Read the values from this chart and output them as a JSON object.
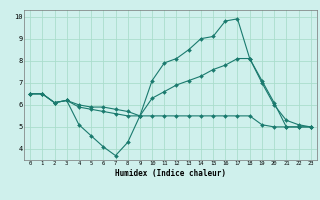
{
  "xlabel": "Humidex (Indice chaleur)",
  "bg_color": "#cff0ec",
  "line_color": "#1a7a6e",
  "grid_color": "#aaddcc",
  "xlim": [
    -0.5,
    23.5
  ],
  "ylim": [
    3.5,
    10.3
  ],
  "xticks": [
    0,
    1,
    2,
    3,
    4,
    5,
    6,
    7,
    8,
    9,
    10,
    11,
    12,
    13,
    14,
    15,
    16,
    17,
    18,
    19,
    20,
    21,
    22,
    23
  ],
  "yticks": [
    4,
    5,
    6,
    7,
    8,
    9,
    10
  ],
  "line1_x": [
    0,
    1,
    2,
    3,
    4,
    5,
    6,
    7,
    8,
    9,
    10,
    11,
    12,
    13,
    14,
    15,
    16,
    17,
    18,
    19,
    20,
    21,
    22,
    23
  ],
  "line1_y": [
    6.5,
    6.5,
    6.1,
    6.2,
    5.1,
    4.6,
    4.1,
    3.7,
    4.3,
    5.5,
    7.1,
    7.9,
    8.1,
    8.5,
    9.0,
    9.1,
    9.8,
    9.9,
    8.1,
    7.1,
    6.1,
    5.0,
    5.0,
    5.0
  ],
  "line2_x": [
    0,
    1,
    2,
    3,
    4,
    5,
    6,
    7,
    8,
    9,
    10,
    11,
    12,
    13,
    14,
    15,
    16,
    17,
    18,
    19,
    20,
    21,
    22,
    23
  ],
  "line2_y": [
    6.5,
    6.5,
    6.1,
    6.2,
    6.0,
    5.9,
    5.9,
    5.8,
    5.7,
    5.5,
    6.3,
    6.6,
    6.9,
    7.1,
    7.3,
    7.6,
    7.8,
    8.1,
    8.1,
    7.0,
    6.0,
    5.3,
    5.1,
    5.0
  ],
  "line3_x": [
    0,
    1,
    2,
    3,
    4,
    5,
    6,
    7,
    8,
    9,
    10,
    11,
    12,
    13,
    14,
    15,
    16,
    17,
    18,
    19,
    20,
    21,
    22,
    23
  ],
  "line3_y": [
    6.5,
    6.5,
    6.1,
    6.2,
    5.9,
    5.8,
    5.7,
    5.6,
    5.5,
    5.5,
    5.5,
    5.5,
    5.5,
    5.5,
    5.5,
    5.5,
    5.5,
    5.5,
    5.5,
    5.1,
    5.0,
    5.0,
    5.0,
    5.0
  ]
}
